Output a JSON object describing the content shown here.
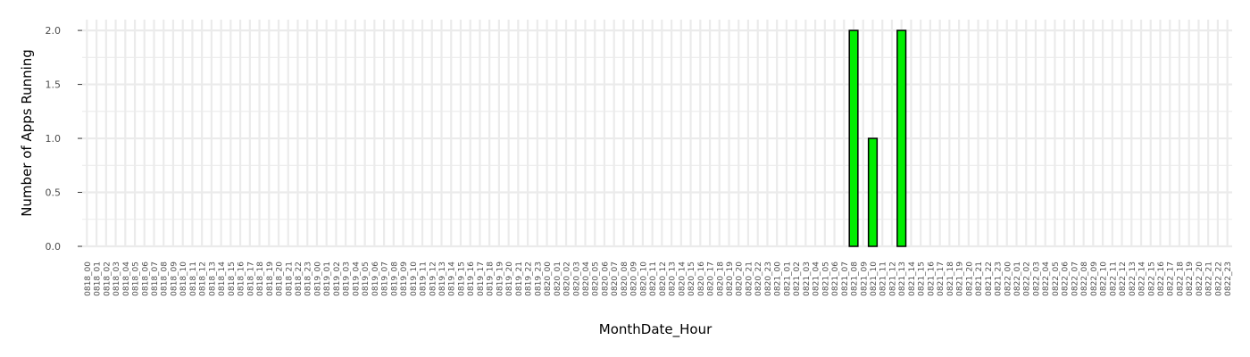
{
  "chart_data": {
    "type": "bar",
    "title": "",
    "xlabel": "MonthDate_Hour",
    "ylabel": "Number of Apps Running",
    "ylim": [
      0,
      2.1
    ],
    "yticks": [
      "0.0",
      "0.5",
      "1.0",
      "1.5",
      "2.0"
    ],
    "grid": true,
    "bar_color": "#00ee00",
    "bar_edge_color": "#000000",
    "panel_background": "#ffffff",
    "grid_color": "#ebebeb",
    "categories": [
      "0818_00",
      "0818_01",
      "0818_02",
      "0818_03",
      "0818_04",
      "0818_05",
      "0818_06",
      "0818_07",
      "0818_08",
      "0818_09",
      "0818_10",
      "0818_11",
      "0818_12",
      "0818_13",
      "0818_14",
      "0818_15",
      "0818_16",
      "0818_17",
      "0818_18",
      "0818_19",
      "0818_20",
      "0818_21",
      "0818_22",
      "0818_23",
      "0819_00",
      "0819_01",
      "0819_02",
      "0819_03",
      "0819_04",
      "0819_05",
      "0819_06",
      "0819_07",
      "0819_08",
      "0819_09",
      "0819_10",
      "0819_11",
      "0819_12",
      "0819_13",
      "0819_14",
      "0819_15",
      "0819_16",
      "0819_17",
      "0819_18",
      "0819_19",
      "0819_20",
      "0819_21",
      "0819_22",
      "0819_23",
      "0820_00",
      "0820_01",
      "0820_02",
      "0820_03",
      "0820_04",
      "0820_05",
      "0820_06",
      "0820_07",
      "0820_08",
      "0820_09",
      "0820_10",
      "0820_11",
      "0820_12",
      "0820_13",
      "0820_14",
      "0820_15",
      "0820_16",
      "0820_17",
      "0820_18",
      "0820_19",
      "0820_20",
      "0820_21",
      "0820_22",
      "0820_23",
      "0821_00",
      "0821_01",
      "0821_02",
      "0821_03",
      "0821_04",
      "0821_05",
      "0821_06",
      "0821_07",
      "0821_08",
      "0821_09",
      "0821_10",
      "0821_11",
      "0821_12",
      "0821_13",
      "0821_14",
      "0821_15",
      "0821_16",
      "0821_17",
      "0821_18",
      "0821_19",
      "0821_20",
      "0821_21",
      "0821_22",
      "0821_23",
      "0822_00",
      "0822_01",
      "0822_02",
      "0822_03",
      "0822_04",
      "0822_05",
      "0822_06",
      "0822_07",
      "0822_08",
      "0822_09",
      "0822_10",
      "0822_11",
      "0822_12",
      "0822_13",
      "0822_14",
      "0822_15",
      "0822_16",
      "0822_17",
      "0822_18",
      "0822_19",
      "0822_20",
      "0822_21",
      "0822_22",
      "0822_23"
    ],
    "values": [
      0,
      0,
      0,
      0,
      0,
      0,
      0,
      0,
      0,
      0,
      0,
      0,
      0,
      0,
      0,
      0,
      0,
      0,
      0,
      0,
      0,
      0,
      0,
      0,
      0,
      0,
      0,
      0,
      0,
      0,
      0,
      0,
      0,
      0,
      0,
      0,
      0,
      0,
      0,
      0,
      0,
      0,
      0,
      0,
      0,
      0,
      0,
      0,
      0,
      0,
      0,
      0,
      0,
      0,
      0,
      0,
      0,
      0,
      0,
      0,
      0,
      0,
      0,
      0,
      0,
      0,
      0,
      0,
      0,
      0,
      0,
      0,
      0,
      0,
      0,
      0,
      0,
      0,
      0,
      0,
      2,
      0,
      1,
      0,
      0,
      2,
      0,
      0,
      0,
      0,
      0,
      0,
      0,
      0,
      0,
      0,
      0,
      0,
      0,
      0,
      0,
      0,
      0,
      0,
      0,
      0,
      0,
      0,
      0,
      0,
      0,
      0,
      0,
      0,
      0,
      0,
      0,
      0,
      0,
      0
    ]
  }
}
